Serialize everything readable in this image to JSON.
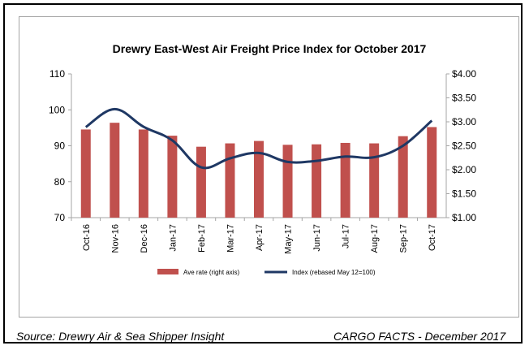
{
  "chart_data": {
    "type": "bar+line",
    "title": "Drewry East-West Air Freight Price Index for October 2017",
    "categories": [
      "Oct-16",
      "Nov-16",
      "Dec-16",
      "Jan-17",
      "Feb-17",
      "Mar-17",
      "Apr-17",
      "May-17",
      "Jun-17",
      "Jul-17",
      "Aug-17",
      "Sep-17",
      "Oct-17"
    ],
    "left_axis": {
      "range": [
        70,
        110
      ],
      "ticks": [
        "70",
        "80",
        "90",
        "100",
        "110"
      ],
      "tick_values": [
        70,
        80,
        90,
        100,
        110
      ]
    },
    "right_axis": {
      "range": [
        1.0,
        4.0
      ],
      "ticks": [
        "$1.00",
        "$1.50",
        "$2.00",
        "$2.50",
        "$3.00",
        "$3.50",
        "$4.00"
      ],
      "tick_values": [
        1.0,
        1.5,
        2.0,
        2.5,
        3.0,
        3.5,
        4.0
      ]
    },
    "series": [
      {
        "name": "Ave rate (right axis)",
        "type": "bar",
        "axis": "right",
        "color": "#c0504d",
        "values": [
          2.84,
          2.98,
          2.84,
          2.71,
          2.48,
          2.55,
          2.6,
          2.52,
          2.53,
          2.56,
          2.55,
          2.7,
          2.89
        ]
      },
      {
        "name": "Index (rebased May 12=100)",
        "type": "line",
        "axis": "left",
        "color": "#1f3864",
        "values": [
          95.2,
          100.2,
          95.3,
          91.5,
          84.0,
          86.5,
          88.0,
          85.5,
          85.8,
          87.0,
          86.8,
          90.0,
          97.0
        ]
      }
    ],
    "grid": false,
    "legend_position": "bottom"
  },
  "footer": {
    "source": "Source: Drewry Air & Sea Shipper Insight",
    "credit": "CARGO FACTS - December 2017"
  }
}
